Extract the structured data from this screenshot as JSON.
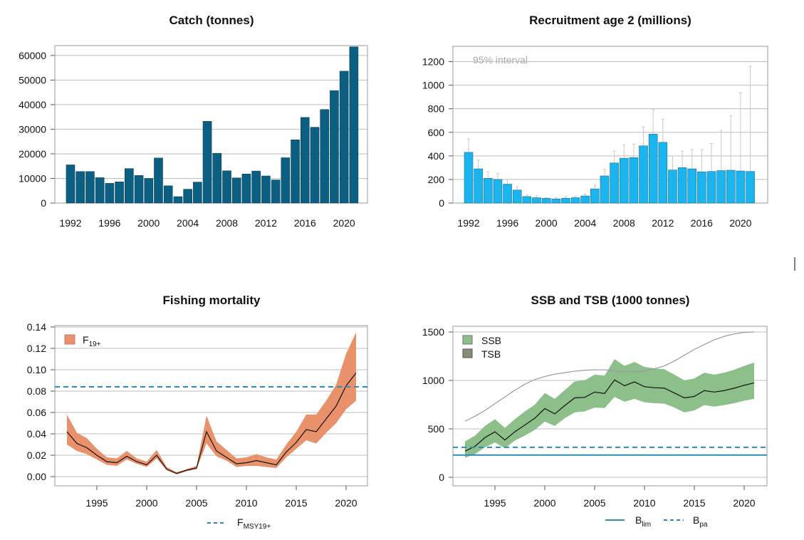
{
  "colors": {
    "catch_bar": "#0b5f82",
    "recruit_bar": "#1ab5ee",
    "recruit_edge": "#1a6f95",
    "ci_line": "#c8c8c8",
    "f_band": "#e8916b",
    "ssb_band": "#8cbf8a",
    "tsb_legend": "#8a8a7a",
    "tsb_line": "#9a9a9a",
    "ref_line": "#2f8bb0",
    "grid": "#bdbdbd"
  },
  "chart_data": [
    {
      "type": "bar",
      "title": "Catch (tonnes)",
      "x": [
        1992,
        1993,
        1994,
        1995,
        1996,
        1997,
        1998,
        1999,
        2000,
        2001,
        2002,
        2003,
        2004,
        2005,
        2006,
        2007,
        2008,
        2009,
        2010,
        2011,
        2012,
        2013,
        2014,
        2015,
        2016,
        2017,
        2018,
        2019,
        2020,
        2021
      ],
      "values": [
        15500,
        12800,
        12800,
        10300,
        8000,
        8600,
        14000,
        11200,
        10000,
        18300,
        7000,
        2600,
        5600,
        8500,
        33200,
        20200,
        13100,
        10200,
        11800,
        13000,
        11000,
        9400,
        18400,
        25700,
        34800,
        30800,
        38000,
        45700,
        53600,
        63500
      ],
      "ylim": [
        0,
        64000
      ],
      "yticks": [
        0,
        10000,
        20000,
        30000,
        40000,
        50000,
        60000
      ],
      "xticks": [
        1992,
        1996,
        2000,
        2004,
        2008,
        2012,
        2016,
        2020
      ],
      "grid": true
    },
    {
      "type": "bar",
      "title": "Recruitment age 2 (millions)",
      "annotation": "95% interval",
      "x": [
        1992,
        1993,
        1994,
        1995,
        1996,
        1997,
        1998,
        1999,
        2000,
        2001,
        2002,
        2003,
        2004,
        2005,
        2006,
        2007,
        2008,
        2009,
        2010,
        2011,
        2012,
        2013,
        2014,
        2015,
        2016,
        2017,
        2018,
        2019,
        2020,
        2021
      ],
      "values": [
        430,
        290,
        210,
        200,
        160,
        110,
        55,
        45,
        40,
        35,
        40,
        45,
        60,
        120,
        230,
        340,
        380,
        385,
        485,
        585,
        515,
        280,
        300,
        290,
        265,
        268,
        275,
        278,
        272,
        268
      ],
      "upper": [
        545,
        365,
        265,
        250,
        200,
        140,
        70,
        60,
        45,
        45,
        55,
        55,
        75,
        150,
        285,
        440,
        495,
        500,
        645,
        795,
        710,
        400,
        440,
        455,
        455,
        505,
        615,
        740,
        935,
        1160
      ],
      "ylim": [
        0,
        1330
      ],
      "yticks": [
        0,
        200,
        400,
        600,
        800,
        1000,
        1200
      ],
      "xticks": [
        1992,
        1996,
        2000,
        2004,
        2008,
        2012,
        2016,
        2020
      ],
      "grid": true
    },
    {
      "type": "line",
      "title": "Fishing mortality",
      "x": [
        1992,
        1993,
        1994,
        1995,
        1996,
        1997,
        1998,
        1999,
        2000,
        2001,
        2002,
        2003,
        2004,
        2005,
        2006,
        2007,
        2008,
        2009,
        2010,
        2011,
        2012,
        2013,
        2014,
        2015,
        2016,
        2017,
        2018,
        2019,
        2020,
        2021
      ],
      "series": [
        {
          "name": "F",
          "name_sub": "19+",
          "values": [
            0.042,
            0.031,
            0.027,
            0.02,
            0.014,
            0.013,
            0.019,
            0.014,
            0.011,
            0.02,
            0.007,
            0.003,
            0.006,
            0.008,
            0.042,
            0.024,
            0.018,
            0.012,
            0.013,
            0.015,
            0.013,
            0.011,
            0.023,
            0.032,
            0.044,
            0.042,
            0.054,
            0.066,
            0.085,
            0.097
          ],
          "low": [
            0.03,
            0.024,
            0.021,
            0.016,
            0.011,
            0.01,
            0.016,
            0.012,
            0.009,
            0.017,
            0.006,
            0.002,
            0.005,
            0.007,
            0.031,
            0.019,
            0.015,
            0.009,
            0.01,
            0.01,
            0.009,
            0.008,
            0.018,
            0.026,
            0.034,
            0.031,
            0.041,
            0.05,
            0.063,
            0.071
          ],
          "high": [
            0.058,
            0.041,
            0.036,
            0.026,
            0.018,
            0.017,
            0.024,
            0.017,
            0.014,
            0.025,
            0.009,
            0.004,
            0.007,
            0.01,
            0.057,
            0.033,
            0.025,
            0.017,
            0.018,
            0.021,
            0.018,
            0.016,
            0.03,
            0.042,
            0.058,
            0.058,
            0.071,
            0.086,
            0.115,
            0.135
          ]
        }
      ],
      "reference_lines": [
        {
          "name": "F",
          "name_sub": "MSY19+",
          "value": 0.084,
          "style": "dashed"
        }
      ],
      "ylim": [
        0,
        0.14
      ],
      "yticks": [
        "0.00",
        "0.02",
        "0.04",
        "0.06",
        "0.08",
        "0.10",
        "0.12",
        "0.14"
      ],
      "xticks": [
        1995,
        2000,
        2005,
        2010,
        2015,
        2020
      ],
      "legend": "top-left",
      "grid": true
    },
    {
      "type": "line",
      "title": "SSB and TSB (1000 tonnes)",
      "x": [
        1992,
        1993,
        1994,
        1995,
        1996,
        1997,
        1998,
        1999,
        2000,
        2001,
        2002,
        2003,
        2004,
        2005,
        2006,
        2007,
        2008,
        2009,
        2010,
        2011,
        2012,
        2013,
        2014,
        2015,
        2016,
        2017,
        2018,
        2019,
        2020,
        2021
      ],
      "series": [
        {
          "name": "SSB",
          "values": [
            270,
            320,
            410,
            470,
            385,
            470,
            540,
            610,
            710,
            655,
            740,
            820,
            825,
            880,
            865,
            1005,
            945,
            985,
            935,
            925,
            920,
            870,
            820,
            835,
            895,
            880,
            895,
            920,
            950,
            975
          ],
          "low": [
            200,
            240,
            310,
            360,
            300,
            380,
            430,
            490,
            575,
            530,
            610,
            670,
            680,
            720,
            715,
            830,
            780,
            810,
            775,
            765,
            760,
            720,
            670,
            690,
            745,
            730,
            745,
            765,
            790,
            810
          ],
          "high": [
            370,
            430,
            530,
            600,
            510,
            600,
            680,
            750,
            870,
            810,
            900,
            990,
            1000,
            1060,
            1050,
            1220,
            1150,
            1190,
            1140,
            1125,
            1115,
            1060,
            1000,
            1020,
            1080,
            1060,
            1080,
            1110,
            1150,
            1185
          ]
        },
        {
          "name": "TSB",
          "values": [
            580,
            630,
            690,
            760,
            830,
            900,
            960,
            1010,
            1040,
            1065,
            1080,
            1095,
            1105,
            1110,
            1110,
            1095,
            1090,
            1090,
            1100,
            1120,
            1150,
            1200,
            1260,
            1320,
            1370,
            1420,
            1455,
            1480,
            1495,
            1500
          ]
        }
      ],
      "reference_lines": [
        {
          "name": "B",
          "name_sub": "lim",
          "value": 230,
          "style": "solid"
        },
        {
          "name": "B",
          "name_sub": "pa",
          "value": 310,
          "style": "dashed"
        }
      ],
      "ylim": [
        -20,
        1520
      ],
      "yticks": [
        0,
        500,
        1000,
        1500
      ],
      "xticks": [
        1995,
        2000,
        2005,
        2010,
        2015,
        2020
      ],
      "legend": "top-left",
      "grid": true
    }
  ]
}
